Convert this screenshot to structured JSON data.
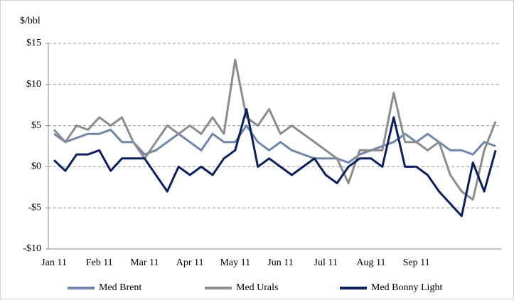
{
  "chart_data": {
    "type": "line",
    "ylabel": "$/bbl",
    "categories": [
      "Jan 11",
      null,
      null,
      null,
      "Feb 11",
      null,
      null,
      null,
      "Mar 11",
      null,
      null,
      null,
      "Apr 11",
      null,
      null,
      null,
      "May 11",
      null,
      null,
      null,
      "Jun 11",
      null,
      null,
      null,
      "Jul 11",
      null,
      null,
      null,
      "Aug 11",
      null,
      null,
      null,
      "Sep 11",
      null,
      null,
      null,
      null,
      null,
      null,
      null
    ],
    "series": [
      {
        "name": "Med Brent",
        "color": "#6f86a8",
        "values": [
          4,
          3,
          3.5,
          4,
          4,
          4.5,
          3,
          3,
          1.5,
          2,
          3,
          4,
          3,
          2,
          4,
          3,
          3,
          5,
          3,
          2,
          3,
          2,
          1.5,
          1,
          1,
          1,
          0.5,
          1.5,
          2,
          2.5,
          3,
          4,
          3,
          4,
          3,
          2,
          2,
          1.5,
          3,
          2.5
        ]
      },
      {
        "name": "Med Urals",
        "color": "#8c8c8c",
        "values": [
          4.5,
          3,
          5,
          4.5,
          6,
          5,
          6,
          3,
          1,
          3,
          5,
          4,
          5,
          4,
          6,
          4,
          13,
          6,
          5,
          7,
          4,
          5,
          4,
          3,
          2,
          1,
          -2,
          2,
          2,
          2,
          9,
          3,
          3,
          2,
          3,
          -1,
          -3,
          -4,
          2,
          5.5
        ]
      },
      {
        "name": "Med Bonny Light",
        "color": "#0a1f5c",
        "values": [
          0.8,
          -0.5,
          1.5,
          1.5,
          2,
          -0.5,
          1,
          1,
          1,
          -1,
          -3,
          0,
          -1,
          0,
          -1,
          1,
          2,
          7,
          0,
          1,
          0,
          -1,
          0,
          1,
          -1,
          -2,
          0,
          1,
          1,
          0,
          6,
          0,
          0,
          -1,
          -3,
          -4.5,
          -6,
          0.5,
          -3,
          2
        ]
      }
    ],
    "ylim": [
      -10,
      15
    ],
    "yticks": [
      {
        "value": -10,
        "label": "-$10"
      },
      {
        "value": -5,
        "label": "-$5"
      },
      {
        "value": 0,
        "label": "$0"
      },
      {
        "value": 5,
        "label": "$5"
      },
      {
        "value": 10,
        "label": "$10"
      },
      {
        "value": 15,
        "label": "$15"
      }
    ],
    "grid": true,
    "legend": "bottom"
  }
}
